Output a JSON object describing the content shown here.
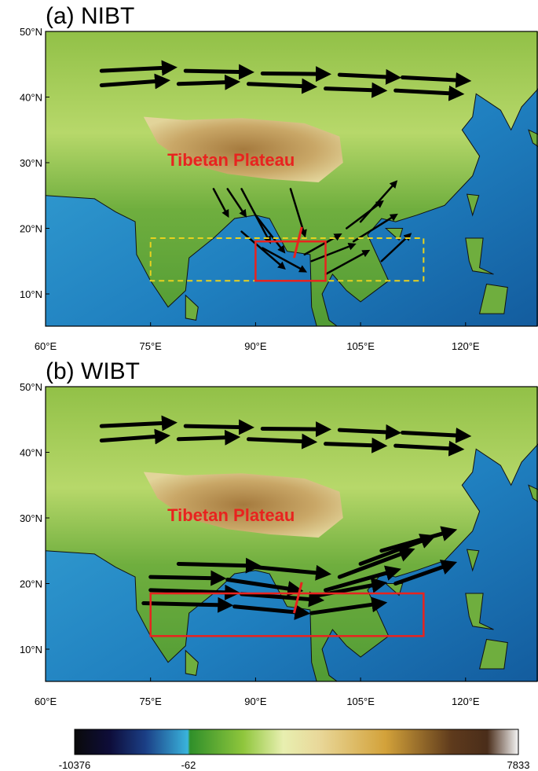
{
  "panels": [
    {
      "label": "(a) NIBT",
      "annotation": "Tibetan Plateau",
      "y_ticks": [
        "50°N",
        "40°N",
        "30°N",
        "20°N",
        "10°N"
      ],
      "x_ticks": [
        "60°E",
        "75°E",
        "90°E",
        "105°E",
        "120°E"
      ]
    },
    {
      "label": "(b) WIBT",
      "annotation": "Tibetan Plateau",
      "y_ticks": [
        "50°N",
        "40°N",
        "30°N",
        "20°N",
        "10°N"
      ],
      "x_ticks": [
        "60°E",
        "75°E",
        "90°E",
        "105°E",
        "120°E"
      ]
    }
  ],
  "colorbar": {
    "labels": [
      -10376,
      -62,
      7833
    ]
  }
}
